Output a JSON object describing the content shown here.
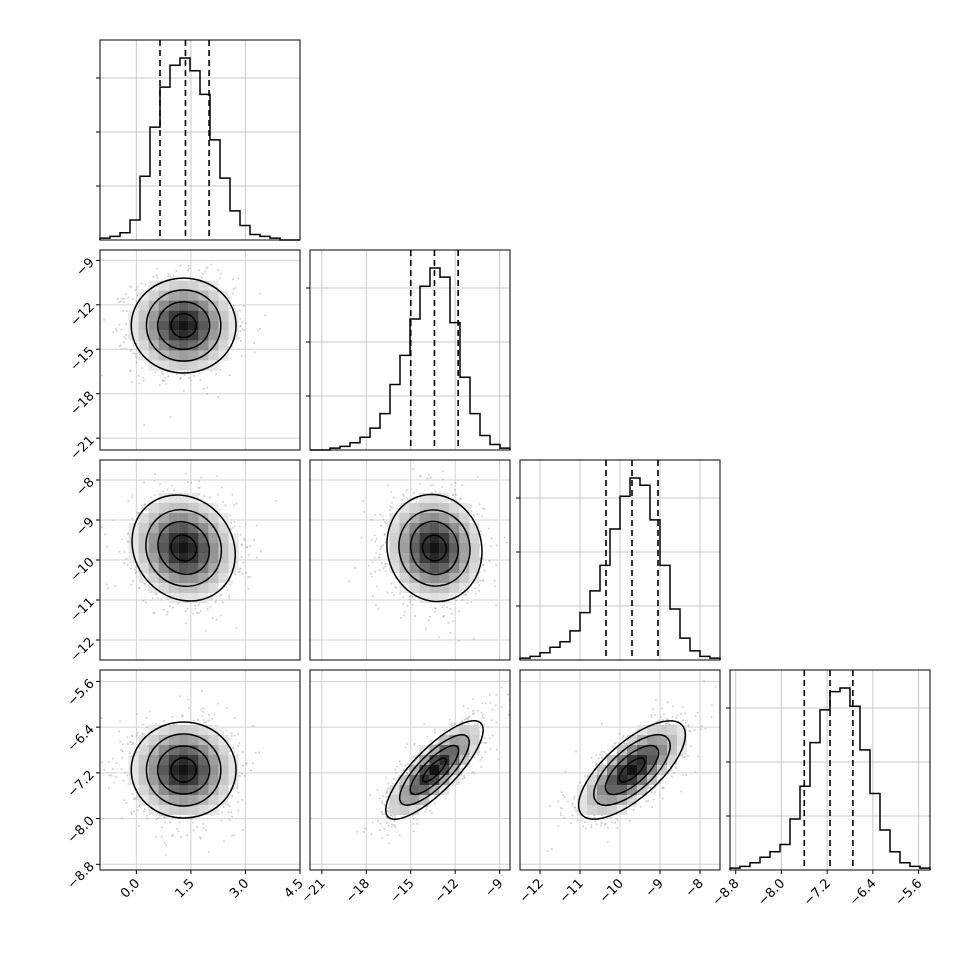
{
  "chart_data": {
    "type": "corner",
    "n_params": 4,
    "params": [
      {
        "index": 0,
        "range": [
          -1.0,
          4.5
        ],
        "quantiles": [
          0.65,
          1.35,
          2.0
        ],
        "xticks": [
          "0.0",
          "1.5",
          "3.0",
          "4.5"
        ],
        "xtick_values": [
          0.0,
          1.5,
          3.0,
          4.5
        ]
      },
      {
        "index": 1,
        "range": [
          -21.8,
          -8.3
        ],
        "quantiles": [
          -15.0,
          -13.4,
          -11.8
        ],
        "xticks": [
          "-21",
          "-18",
          "-15",
          "-12",
          "-9"
        ],
        "xtick_values": [
          -21,
          -18,
          -15,
          -12,
          -9
        ],
        "yticks": [
          "-9",
          "-12",
          "-15",
          "-18",
          "-21"
        ],
        "ytick_values": [
          -9,
          -12,
          -15,
          -18,
          -21
        ]
      },
      {
        "index": 2,
        "range": [
          -12.5,
          -7.5
        ],
        "quantiles": [
          -10.35,
          -9.7,
          -9.05
        ],
        "xticks": [
          "-12",
          "-11",
          "-10",
          "-9",
          "-8"
        ],
        "xtick_values": [
          -12,
          -11,
          -10,
          -9,
          -8
        ],
        "yticks": [
          "-8",
          "-9",
          "-10",
          "-11",
          "-12"
        ],
        "ytick_values": [
          -8,
          -9,
          -10,
          -11,
          -12
        ]
      },
      {
        "index": 3,
        "range": [
          -8.9,
          -5.4
        ],
        "quantiles": [
          -7.6,
          -7.15,
          -6.75
        ],
        "xticks": [
          "-8.8",
          "-8.0",
          "-7.2",
          "-6.4",
          "-5.6"
        ],
        "xtick_values": [
          -8.8,
          -8.0,
          -7.2,
          -6.4,
          -5.6
        ],
        "yticks": [
          "-5.6",
          "-6.4",
          "-7.2",
          "-8.0",
          "-8.8"
        ],
        "ytick_values": [
          -5.6,
          -6.4,
          -7.2,
          -8.0,
          -8.8
        ]
      }
    ],
    "histograms": [
      {
        "param": 0,
        "bins": 20,
        "counts": [
          0.01,
          0.02,
          0.04,
          0.11,
          0.35,
          0.62,
          0.84,
          0.96,
          1.0,
          0.93,
          0.8,
          0.55,
          0.34,
          0.16,
          0.08,
          0.03,
          0.02,
          0.01,
          0,
          0
        ]
      },
      {
        "param": 1,
        "bins": 20,
        "counts": [
          0,
          0,
          0.01,
          0.02,
          0.04,
          0.07,
          0.12,
          0.2,
          0.36,
          0.52,
          0.72,
          0.9,
          1.0,
          0.95,
          0.7,
          0.4,
          0.2,
          0.08,
          0.03,
          0.01
        ]
      },
      {
        "param": 2,
        "bins": 20,
        "counts": [
          0.01,
          0.02,
          0.04,
          0.07,
          0.1,
          0.16,
          0.26,
          0.38,
          0.52,
          0.72,
          0.9,
          1.0,
          0.96,
          0.77,
          0.52,
          0.28,
          0.12,
          0.05,
          0.02,
          0.01
        ]
      },
      {
        "param": 3,
        "bins": 20,
        "counts": [
          0.01,
          0.02,
          0.04,
          0.07,
          0.1,
          0.14,
          0.28,
          0.46,
          0.7,
          0.88,
          0.98,
          1.0,
          0.9,
          0.66,
          0.42,
          0.22,
          0.1,
          0.04,
          0.02,
          0.01
        ]
      }
    ],
    "pairs": [
      {
        "x": 0,
        "y": 1,
        "mean": [
          1.3,
          -13.4
        ],
        "std": [
          0.7,
          1.6
        ],
        "rho": 0.0
      },
      {
        "x": 0,
        "y": 2,
        "mean": [
          1.3,
          -9.7
        ],
        "std": [
          0.7,
          0.65
        ],
        "rho": -0.1
      },
      {
        "x": 1,
        "y": 2,
        "mean": [
          -13.4,
          -9.7
        ],
        "std": [
          1.6,
          0.65
        ],
        "rho": -0.05
      },
      {
        "x": 0,
        "y": 3,
        "mean": [
          1.3,
          -7.15
        ],
        "std": [
          0.7,
          0.42
        ],
        "rho": 0.0
      },
      {
        "x": 1,
        "y": 3,
        "mean": [
          -13.4,
          -7.15
        ],
        "std": [
          1.6,
          0.42
        ],
        "rho": 0.8
      },
      {
        "x": 2,
        "y": 3,
        "mean": [
          -9.7,
          -7.15
        ],
        "std": [
          0.65,
          0.42
        ],
        "rho": 0.7
      }
    ],
    "contour_levels_sigma": [
      0.5,
      1.0,
      1.5,
      2.0
    ],
    "grid": true,
    "title": "",
    "xlabel": "",
    "ylabel": ""
  }
}
